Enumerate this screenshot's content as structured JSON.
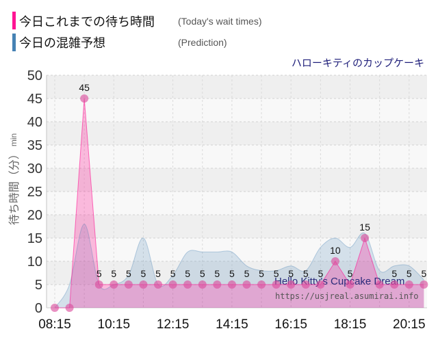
{
  "chart_data": {
    "type": "area",
    "title": "ハローキティのカップケーキ",
    "ylabel": "待ち時間（分）",
    "ylabel_unit": "min",
    "ylim": [
      0,
      50
    ],
    "yticks": [
      0,
      5,
      10,
      15,
      20,
      25,
      30,
      35,
      40,
      45,
      50
    ],
    "xticks": [
      "08:15",
      "10:15",
      "12:15",
      "14:15",
      "16:15",
      "18:15",
      "20:15"
    ],
    "grid": true,
    "legend_position": "top-left",
    "x": [
      "08:15",
      "08:45",
      "09:15",
      "09:45",
      "10:15",
      "10:45",
      "11:15",
      "11:45",
      "12:15",
      "12:45",
      "13:15",
      "13:45",
      "14:15",
      "14:45",
      "15:15",
      "15:45",
      "16:15",
      "16:45",
      "17:15",
      "17:45",
      "18:15",
      "18:45",
      "19:15",
      "19:45",
      "20:15",
      "20:45"
    ],
    "series": [
      {
        "name": "今日これまでの待ち時間",
        "legend_note": "(Today's wait times)",
        "color": "#ff1493",
        "curve": "straight",
        "values": [
          0,
          0,
          45,
          5,
          5,
          5,
          5,
          5,
          5,
          5,
          5,
          5,
          5,
          5,
          5,
          5,
          5,
          5,
          5,
          10,
          5,
          15,
          5,
          5,
          5,
          5
        ],
        "data_labels": [
          null,
          null,
          "45",
          "5",
          "5",
          "5",
          "5",
          "5",
          "5",
          "5",
          "5",
          "5",
          "5",
          "5",
          "5",
          "5",
          "5",
          "5",
          "5",
          "10",
          "5",
          "15",
          null,
          "5",
          "5",
          "5"
        ]
      },
      {
        "name": "今日の混雑予想",
        "legend_note": "(Prediction)",
        "color": "#4682b4",
        "curve": "spline",
        "values": [
          0,
          5,
          18,
          5,
          5,
          7,
          15,
          5,
          7,
          12,
          12,
          12,
          12,
          9,
          8,
          8,
          9,
          8,
          13,
          15,
          13,
          16,
          8,
          9,
          9,
          6
        ]
      }
    ]
  },
  "watermark": {
    "name": "Hello Kitty's Cupcake Dream",
    "url": "https://usjreal.asumirai.info"
  }
}
